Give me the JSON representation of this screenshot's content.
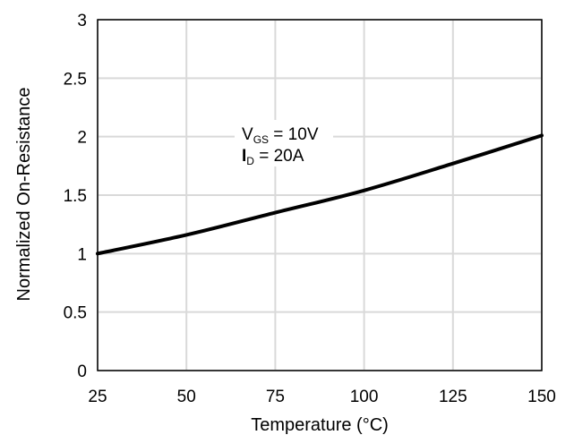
{
  "chart_data": {
    "type": "line",
    "xlabel": "Temperature (°C)",
    "ylabel": "Normalized On-Resistance",
    "xlim": [
      25,
      150
    ],
    "ylim": [
      0,
      3
    ],
    "x_ticks": [
      25,
      50,
      75,
      100,
      125,
      150
    ],
    "y_ticks": [
      0,
      0.5,
      1,
      1.5,
      2,
      2.5,
      3
    ],
    "grid": true,
    "series": [
      {
        "x": [
          25,
          50,
          75,
          100,
          125,
          150
        ],
        "y": [
          1.0,
          1.16,
          1.35,
          1.54,
          1.77,
          2.01
        ],
        "color": "#000000"
      }
    ],
    "annotations": [
      {
        "main": "V",
        "sub": "GS",
        "rest": " = 10V"
      },
      {
        "main": "I",
        "sub": "D",
        "rest": " = 20A"
      }
    ]
  }
}
